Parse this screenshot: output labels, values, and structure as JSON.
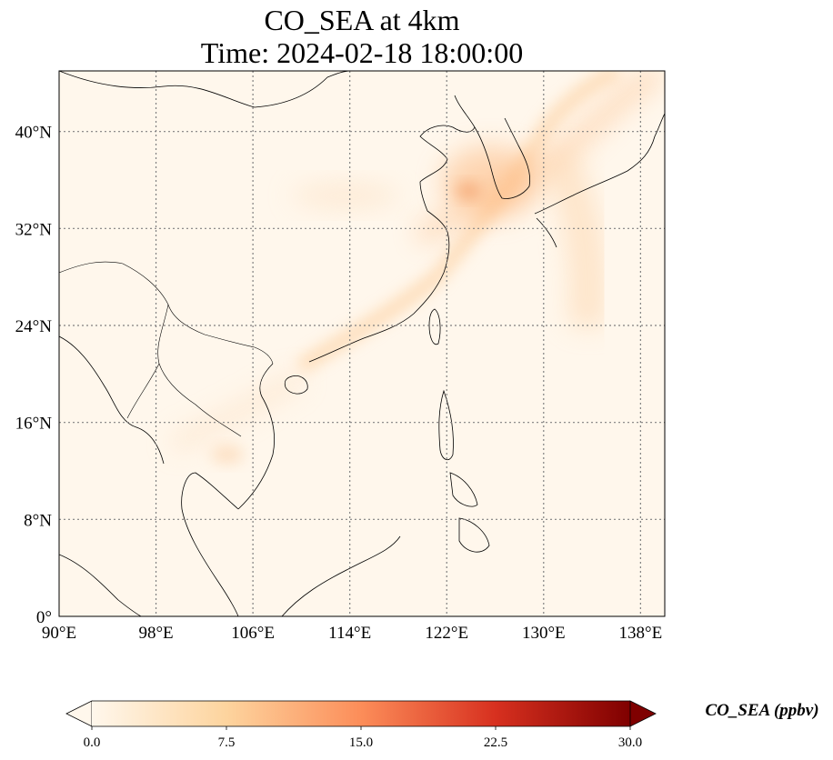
{
  "title": {
    "line1": "CO_SEA at 4km",
    "line2": "Time: 2024-02-18 18:00:00"
  },
  "map": {
    "projection": "PlateCarree",
    "lon_range": [
      90,
      140
    ],
    "lat_range": [
      0,
      45
    ],
    "gridlines": "dotted",
    "coastlines": true,
    "borders": true,
    "background_color": "#fff7ec",
    "lon_ticks": [
      {
        "value": 90,
        "label": "90°E"
      },
      {
        "value": 98,
        "label": "98°E"
      },
      {
        "value": 106,
        "label": "106°E"
      },
      {
        "value": 114,
        "label": "114°E"
      },
      {
        "value": 122,
        "label": "122°E"
      },
      {
        "value": 130,
        "label": "130°E"
      },
      {
        "value": 138,
        "label": "138°E"
      }
    ],
    "lat_ticks": [
      {
        "value": 0,
        "label": "0°"
      },
      {
        "value": 8,
        "label": "8°N"
      },
      {
        "value": 16,
        "label": "16°N"
      },
      {
        "value": 24,
        "label": "24°N"
      },
      {
        "value": 32,
        "label": "32°N"
      },
      {
        "value": 40,
        "label": "40°N"
      }
    ]
  },
  "colorbar": {
    "label": "CO_SEA (ppbv)",
    "colormap": "OrRd",
    "range": [
      0,
      30
    ],
    "extend": "both",
    "ticks": [
      {
        "value": 0,
        "label": "0.0"
      },
      {
        "value": 7.5,
        "label": "7.5"
      },
      {
        "value": 15,
        "label": "15.0"
      },
      {
        "value": 22.5,
        "label": "22.5"
      },
      {
        "value": 30,
        "label": "30.0"
      }
    ],
    "colors": {
      "low": "#fff7ec",
      "mid_low": "#fdd49e",
      "mid": "#fc8d59",
      "mid_high": "#d7301f",
      "high": "#7f0000"
    }
  }
}
